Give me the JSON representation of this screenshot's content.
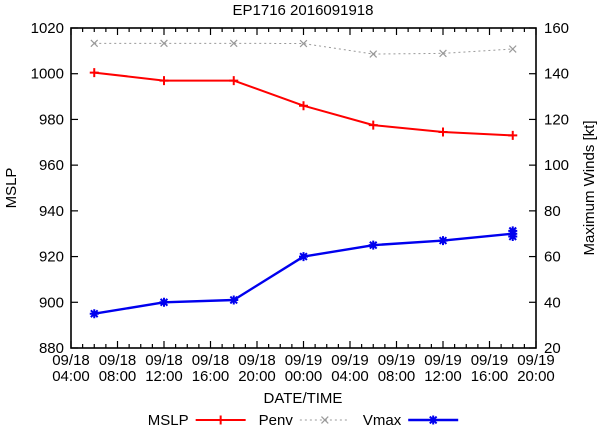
{
  "chart_data": {
    "type": "line",
    "title": "EP1716 2016091918",
    "xlabel": "DATE/TIME",
    "ylabel_left": "MSLP",
    "ylabel_right": "Maximum Winds [kt]",
    "grid": false,
    "background": "#ffffff",
    "x_axis": {
      "range_hours": [
        0,
        40
      ],
      "start": "09/18 04:00",
      "end": "09/19 20:00",
      "major_tick_every_h": 4,
      "minor_tick_every_h": 1,
      "tick_labels": [
        {
          "date": "09/18",
          "time": "04:00"
        },
        {
          "date": "09/18",
          "time": "08:00"
        },
        {
          "date": "09/18",
          "time": "12:00"
        },
        {
          "date": "09/18",
          "time": "16:00"
        },
        {
          "date": "09/18",
          "time": "20:00"
        },
        {
          "date": "09/19",
          "time": "00:00"
        },
        {
          "date": "09/19",
          "time": "04:00"
        },
        {
          "date": "09/19",
          "time": "08:00"
        },
        {
          "date": "09/19",
          "time": "12:00"
        },
        {
          "date": "09/19",
          "time": "16:00"
        },
        {
          "date": "09/19",
          "time": "20:00"
        }
      ]
    },
    "y_left": {
      "label": "MSLP",
      "range": [
        880,
        1020
      ],
      "ticks": [
        880,
        900,
        920,
        940,
        960,
        980,
        1000,
        1020
      ]
    },
    "y_right": {
      "label": "Maximum Winds [kt]",
      "range": [
        20,
        160
      ],
      "ticks": [
        20,
        40,
        60,
        80,
        100,
        120,
        140,
        160
      ]
    },
    "point_times": [
      "09/18 06:00",
      "09/18 12:00",
      "09/18 18:00",
      "09/19 00:00",
      "09/19 06:00",
      "09/19 12:00",
      "09/19 18:00"
    ],
    "x_hours": [
      2,
      8,
      14,
      20,
      26,
      32,
      38
    ],
    "series": [
      {
        "name": "MSLP",
        "axis": "left",
        "color": "#ff0000",
        "line": "solid",
        "width": 2,
        "marker": "plus",
        "values": [
          1000.5,
          997,
          997,
          986,
          977.5,
          974.5,
          973
        ]
      },
      {
        "name": "Penv",
        "axis": "left",
        "color": "#999999",
        "line": "dotted",
        "width": 1,
        "marker": "cross",
        "values": [
          1013.3,
          1013.3,
          1013.3,
          1013.2,
          1008.6,
          1008.9,
          1010.8
        ]
      },
      {
        "name": "Vmax",
        "axis": "right",
        "color": "#0000ee",
        "line": "solid",
        "width": 2.4,
        "marker": "asterisk",
        "values": [
          35,
          40,
          41,
          60,
          65,
          67,
          70
        ],
        "double_last_marker": true
      }
    ],
    "legend": {
      "position": "bottom-center",
      "entries": [
        "MSLP",
        "Penv",
        "Vmax"
      ]
    }
  }
}
